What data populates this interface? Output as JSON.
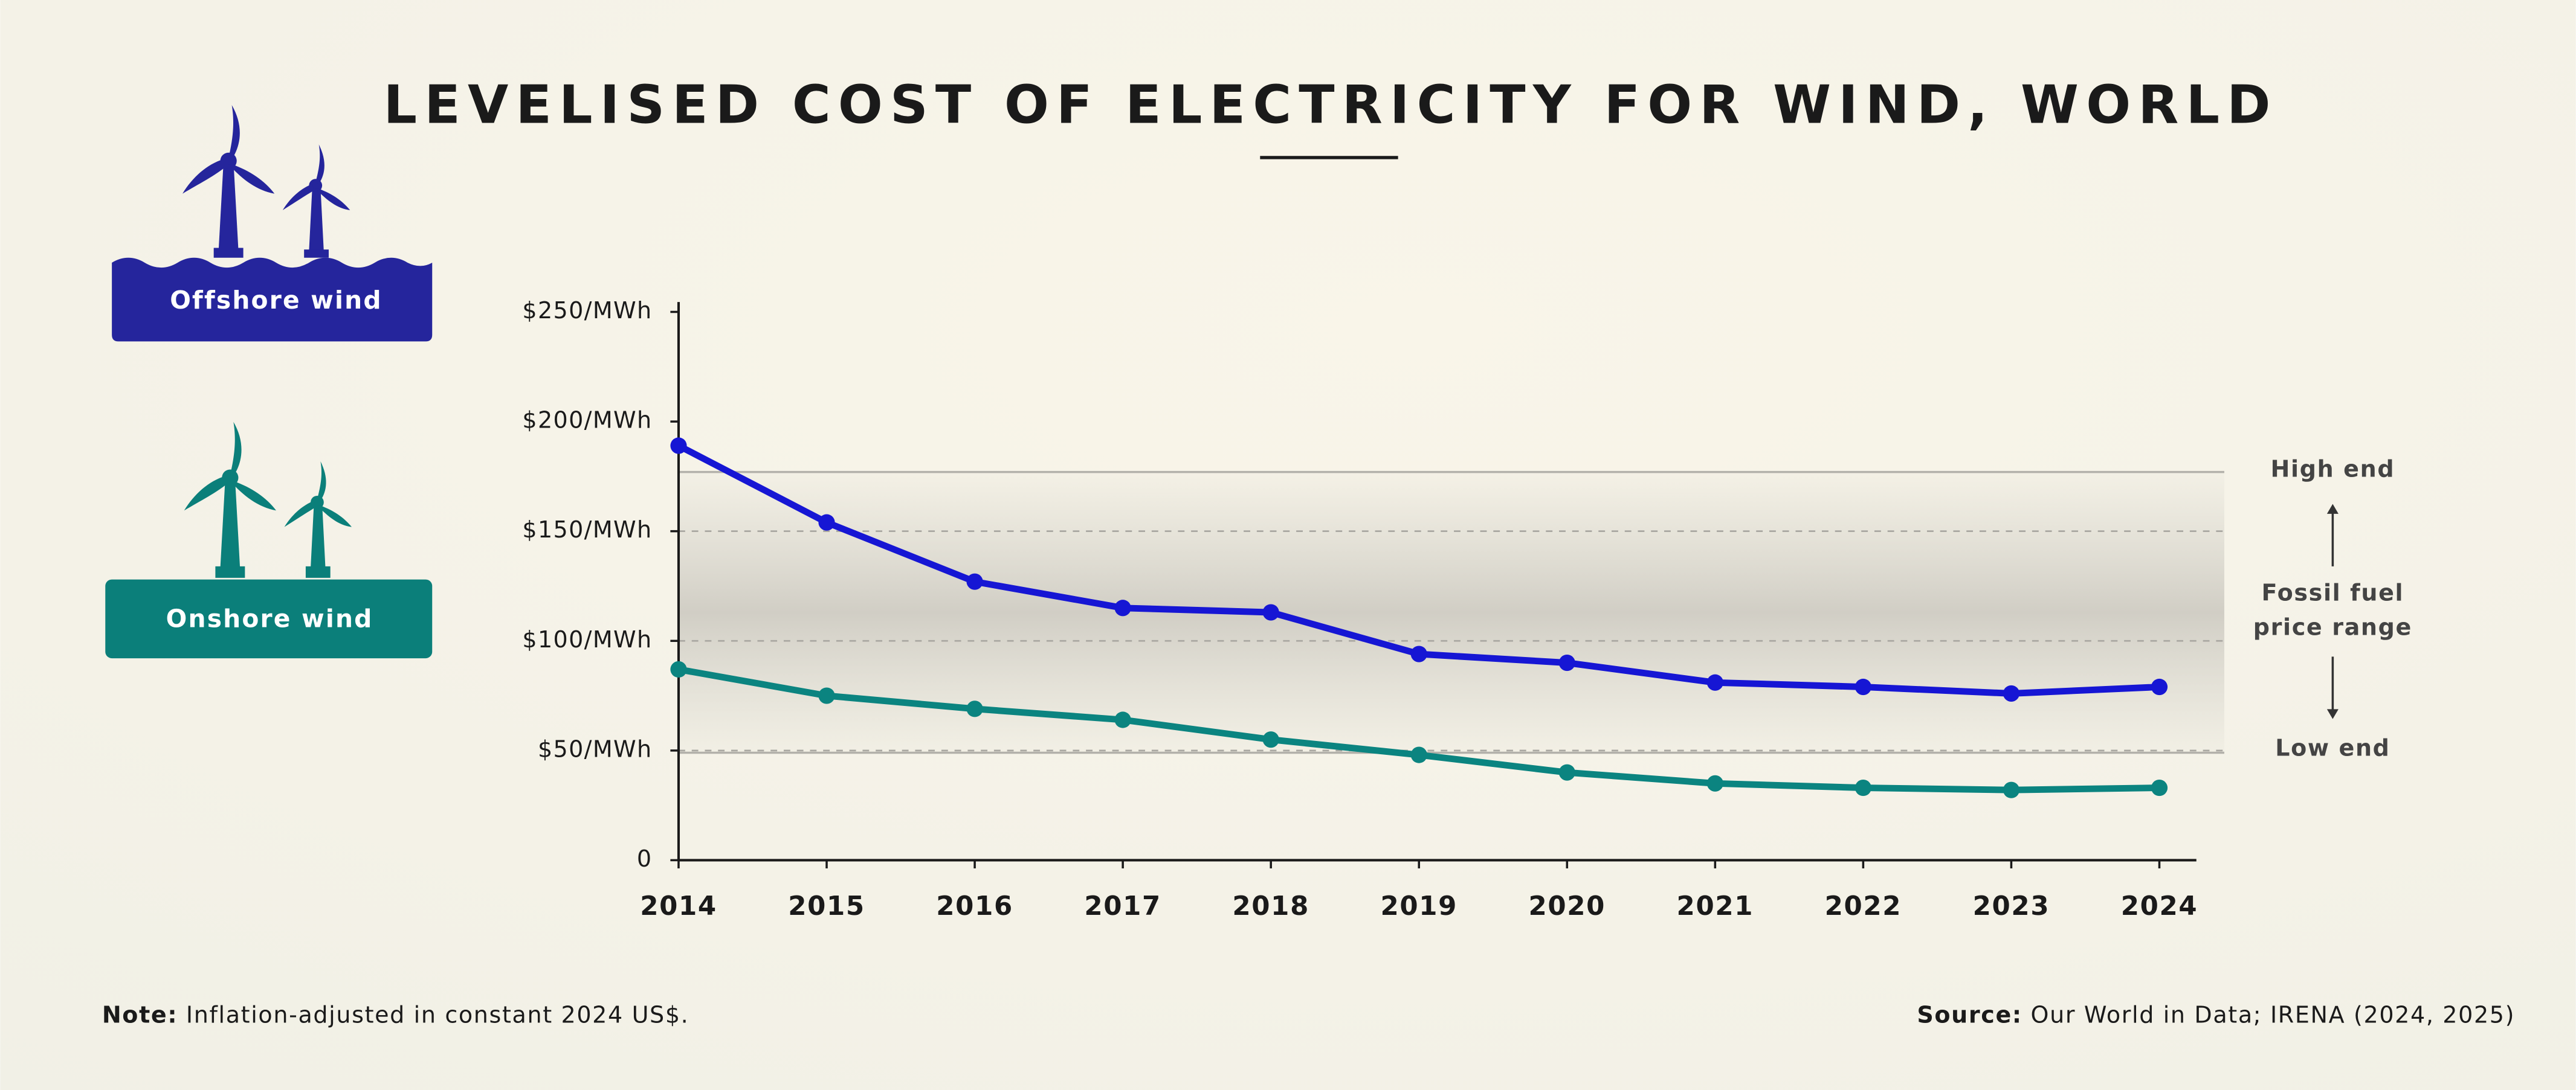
{
  "chart_data": {
    "type": "line",
    "title": "LEVELISED COST OF ELECTRICITY FOR WIND, WORLD",
    "x": [
      2014,
      2015,
      2016,
      2017,
      2018,
      2019,
      2020,
      2021,
      2022,
      2023,
      2024
    ],
    "xlim": [
      2014,
      2024.25
    ],
    "xticks": [
      2014,
      2015,
      2016,
      2017,
      2018,
      2019,
      2020,
      2021,
      2022,
      2023,
      2024
    ],
    "ylim": [
      0,
      250
    ],
    "yticks": [
      0,
      {
        "value": 50,
        "label": "$50/MWh"
      },
      {
        "value": 100,
        "label": "$100/MWh"
      },
      {
        "value": 150,
        "label": "$150/MWh"
      },
      {
        "value": 200,
        "label": "$200/MWh"
      },
      {
        "value": 250,
        "label": "$250/MWh"
      }
    ],
    "series": [
      {
        "name": "Offshore wind",
        "color": "#1616d4",
        "values": [
          189,
          154,
          127,
          115,
          113,
          94,
          90,
          81,
          79,
          76,
          79
        ]
      },
      {
        "name": "Onshore wind",
        "color": "#0b8480",
        "values": [
          87,
          75,
          69,
          64,
          55,
          48,
          40,
          35,
          33,
          32,
          33
        ]
      }
    ],
    "fossil_range": {
      "low": 49,
      "high": 177,
      "high_label": "High end",
      "low_label": "Low end",
      "label_lines": [
        "Fossil fuel",
        "price range"
      ]
    },
    "note_label": "Note:",
    "note": "Inflation-adjusted in constant 2024 US$.",
    "source_label": "Source:",
    "source": "Our World in Data; IRENA (2024, 2025)"
  }
}
